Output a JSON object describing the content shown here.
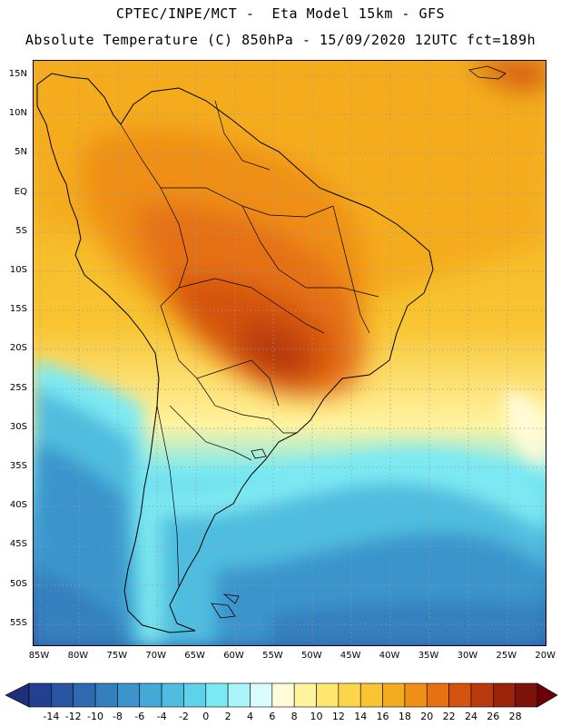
{
  "header": {
    "title_line1": "CPTEC/INPE/MCT -  Eta Model 15km - GFS",
    "title_line2": "Absolute Temperature (C) 850hPa - 15/09/2020 12UTC fct=189h"
  },
  "map": {
    "lat_labels": [
      "15N",
      "10N",
      "5N",
      "EQ",
      "5S",
      "10S",
      "15S",
      "20S",
      "25S",
      "30S",
      "35S",
      "40S",
      "45S",
      "50S",
      "55S"
    ],
    "lon_labels": [
      "85W",
      "80W",
      "75W",
      "70W",
      "65W",
      "60W",
      "55W",
      "50W",
      "45W",
      "40W",
      "35W",
      "30W",
      "25W",
      "20W"
    ],
    "grid_color": "#9a9a9a",
    "coast_color": "#000000"
  },
  "colorbar": {
    "labels": [
      "-14",
      "-12",
      "-10",
      "-8",
      "-6",
      "-4",
      "-2",
      "0",
      "2",
      "4",
      "6",
      "8",
      "10",
      "12",
      "14",
      "16",
      "18",
      "20",
      "22",
      "24",
      "26",
      "28"
    ],
    "colors": [
      "#233f8f",
      "#2a55a3",
      "#2f6ab1",
      "#3480bf",
      "#3b95cc",
      "#44a9d6",
      "#4fbddf",
      "#5ed2e8",
      "#7be9f2",
      "#a9f5f8",
      "#d9fbfb",
      "#fffbd8",
      "#fff39f",
      "#ffe66e",
      "#fcd64a",
      "#f8c431",
      "#f4ac1f",
      "#ef8f17",
      "#e57112",
      "#d4530f",
      "#b93a0c",
      "#9a2309",
      "#7b1308"
    ],
    "under_color": "#1e2f7a",
    "over_color": "#6a0008"
  }
}
